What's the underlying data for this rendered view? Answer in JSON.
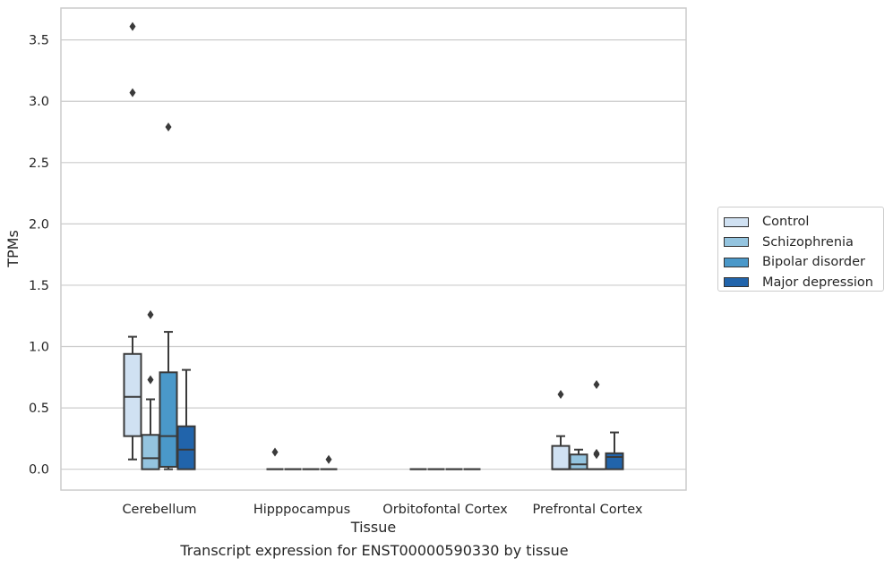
{
  "caption": "Transcript expression for ENST00000590330 by tissue",
  "chart_data": {
    "type": "boxplot",
    "xlabel": "Tissue",
    "ylabel": "TPMs",
    "ylim": [
      -0.17,
      3.76
    ],
    "yticks": [
      "0.0",
      "0.5",
      "1.0",
      "1.5",
      "2.0",
      "2.5",
      "3.0",
      "3.5"
    ],
    "ytick_values": [
      0,
      0.5,
      1.0,
      1.5,
      2.0,
      2.5,
      3.0,
      3.5
    ],
    "grid": true,
    "legend_position": "right",
    "categories": [
      "Cerebellum",
      "Hipppocampus",
      "Orbitofontal Cortex",
      "Prefrontal Cortex"
    ],
    "series": [
      {
        "name": "Control",
        "color": "#d0e1f2",
        "boxes": [
          {
            "q1": 0.27,
            "median": 0.59,
            "q3": 0.94,
            "whisker_low": 0.08,
            "whisker_high": 1.08,
            "outliers": [
              3.61,
              3.07
            ]
          },
          {
            "q1": 0,
            "median": 0,
            "q3": 0,
            "whisker_low": 0,
            "whisker_high": 0,
            "outliers": [
              0.14
            ]
          },
          {
            "q1": 0,
            "median": 0,
            "q3": 0,
            "whisker_low": 0,
            "whisker_high": 0,
            "outliers": []
          },
          {
            "q1": 0,
            "median": 0,
            "q3": 0.19,
            "whisker_low": 0,
            "whisker_high": 0.27,
            "outliers": [
              0.61
            ]
          }
        ]
      },
      {
        "name": "Schizophrenia",
        "color": "#94c4df",
        "boxes": [
          {
            "q1": 0,
            "median": 0.09,
            "q3": 0.28,
            "whisker_low": 0,
            "whisker_high": 0.57,
            "outliers": [
              0.73,
              1.26
            ]
          },
          {
            "q1": 0,
            "median": 0,
            "q3": 0,
            "whisker_low": 0,
            "whisker_high": 0,
            "outliers": []
          },
          {
            "q1": 0,
            "median": 0,
            "q3": 0,
            "whisker_low": 0,
            "whisker_high": 0,
            "outliers": []
          },
          {
            "q1": 0,
            "median": 0.04,
            "q3": 0.12,
            "whisker_low": 0,
            "whisker_high": 0.16,
            "outliers": []
          }
        ]
      },
      {
        "name": "Bipolar disorder",
        "color": "#4a98c9",
        "boxes": [
          {
            "q1": 0.02,
            "median": 0.27,
            "q3": 0.79,
            "whisker_low": 0,
            "whisker_high": 1.12,
            "outliers": [
              2.79
            ]
          },
          {
            "q1": 0,
            "median": 0,
            "q3": 0,
            "whisker_low": 0,
            "whisker_high": 0,
            "outliers": []
          },
          {
            "q1": 0,
            "median": 0,
            "q3": 0,
            "whisker_low": 0,
            "whisker_high": 0,
            "outliers": []
          },
          {
            "q1": 0,
            "median": 0,
            "q3": 0,
            "whisker_low": 0,
            "whisker_high": 0,
            "outliers": [
              0.69,
              0.13,
              0.12
            ]
          }
        ]
      },
      {
        "name": "Major depression",
        "color": "#2164ab",
        "boxes": [
          {
            "q1": 0,
            "median": 0.16,
            "q3": 0.35,
            "whisker_low": 0,
            "whisker_high": 0.81,
            "outliers": []
          },
          {
            "q1": 0,
            "median": 0,
            "q3": 0,
            "whisker_low": 0,
            "whisker_high": 0,
            "outliers": [
              0.08
            ]
          },
          {
            "q1": 0,
            "median": 0,
            "q3": 0,
            "whisker_low": 0,
            "whisker_high": 0,
            "outliers": []
          },
          {
            "q1": 0,
            "median": 0.1,
            "q3": 0.13,
            "whisker_low": 0,
            "whisker_high": 0.3,
            "outliers": []
          }
        ]
      }
    ]
  }
}
